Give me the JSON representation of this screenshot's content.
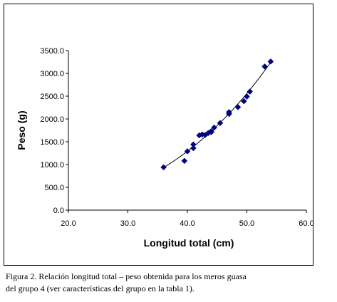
{
  "chart_data": {
    "type": "scatter",
    "xlabel": "Longitud total (cm)",
    "ylabel": "Peso (g)",
    "xlim": [
      20.0,
      60.0
    ],
    "ylim": [
      0.0,
      3500.0
    ],
    "x_ticks": [
      "20.0",
      "30.0",
      "40.0",
      "50.0",
      "60.0"
    ],
    "y_ticks": [
      "0.0",
      "500.0",
      "1000.0",
      "1500.0",
      "2000.0",
      "2500.0",
      "3000.0",
      "3500.0"
    ],
    "grid": false,
    "trendline": true,
    "marker": "diamond",
    "marker_color": "#000080",
    "line_color": "#000000",
    "series": [
      {
        "points": [
          [
            36.0,
            940
          ],
          [
            39.5,
            1080
          ],
          [
            40.0,
            1290
          ],
          [
            41.0,
            1360
          ],
          [
            41.0,
            1440
          ],
          [
            42.0,
            1640
          ],
          [
            42.5,
            1660
          ],
          [
            43.0,
            1650
          ],
          [
            43.5,
            1690
          ],
          [
            44.0,
            1710
          ],
          [
            44.0,
            1730
          ],
          [
            44.5,
            1810
          ],
          [
            45.5,
            1910
          ],
          [
            47.0,
            2110
          ],
          [
            47.0,
            2150
          ],
          [
            48.5,
            2260
          ],
          [
            49.5,
            2390
          ],
          [
            50.0,
            2490
          ],
          [
            50.5,
            2600
          ],
          [
            53.0,
            3150
          ],
          [
            54.0,
            3260
          ]
        ]
      }
    ]
  },
  "caption": {
    "line1": "Figura 2.   Relación longitud total – peso obtenida para los meros guasa",
    "line2": "del grupo 4 (ver características del grupo en la tabla 1)."
  }
}
